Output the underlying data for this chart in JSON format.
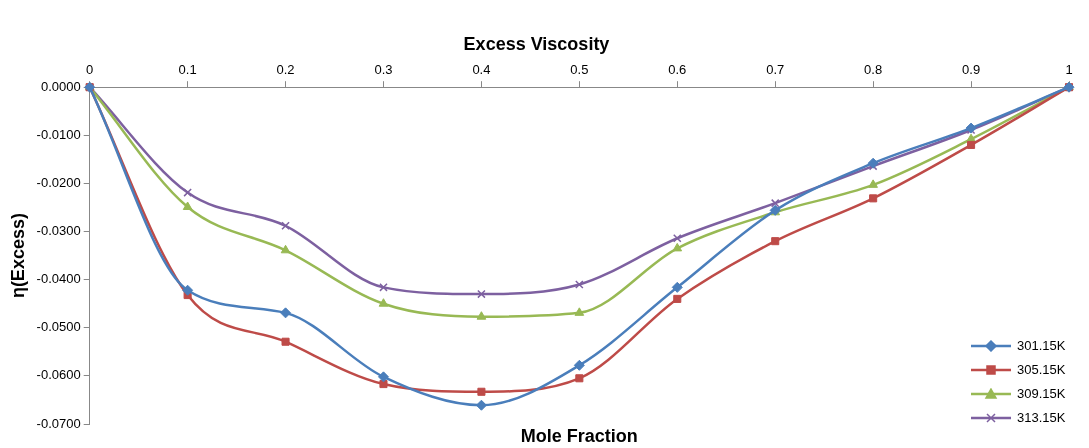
{
  "chart_data": {
    "type": "line",
    "title": "Excess Viscosity",
    "xlabel": "Mole Fraction",
    "ylabel": "η(Excess)",
    "x": [
      0,
      0.1,
      0.2,
      0.3,
      0.4,
      0.5,
      0.6,
      0.7,
      0.8,
      0.9,
      1
    ],
    "series": [
      {
        "name": "301.15K",
        "color": "#4a7ebb",
        "marker": "diamond",
        "values": [
          0,
          -0.0422,
          -0.0469,
          -0.0602,
          -0.0661,
          -0.0578,
          -0.0416,
          -0.0256,
          -0.0158,
          -0.0085,
          0
        ]
      },
      {
        "name": "305.15K",
        "color": "#be4b48",
        "marker": "square",
        "values": [
          0,
          -0.0432,
          -0.0529,
          -0.0617,
          -0.0633,
          -0.0605,
          -0.044,
          -0.032,
          -0.0231,
          -0.012,
          0
        ]
      },
      {
        "name": "309.15K",
        "color": "#98b954",
        "marker": "triangle",
        "values": [
          0,
          -0.0249,
          -0.0339,
          -0.045,
          -0.0477,
          -0.0469,
          -0.0335,
          -0.026,
          -0.0203,
          -0.0108,
          0
        ]
      },
      {
        "name": "313.15K",
        "color": "#7d60a0",
        "marker": "cross",
        "values": [
          0,
          -0.0219,
          -0.0288,
          -0.0416,
          -0.043,
          -0.041,
          -0.0314,
          -0.0241,
          -0.0164,
          -0.0089,
          0
        ]
      }
    ],
    "xlim": [
      0,
      1
    ],
    "xticks": [
      0,
      0.1,
      0.2,
      0.3,
      0.4,
      0.5,
      0.6,
      0.7,
      0.8,
      0.9,
      1
    ],
    "ylim": [
      -0.07,
      0
    ],
    "yticks": [
      {
        "value": 0,
        "label": "0.0000"
      },
      {
        "value": -0.01,
        "label": "-0.0100"
      },
      {
        "value": -0.02,
        "label": "-0.0200"
      },
      {
        "value": -0.03,
        "label": "-0.0300"
      },
      {
        "value": -0.04,
        "label": "-0.0400"
      },
      {
        "value": -0.05,
        "label": "-0.0500"
      },
      {
        "value": -0.06,
        "label": "-0.0600"
      },
      {
        "value": -0.07,
        "label": "-0.0700"
      }
    ],
    "grid": false,
    "legend": "bottom right",
    "line_style": "solid"
  }
}
